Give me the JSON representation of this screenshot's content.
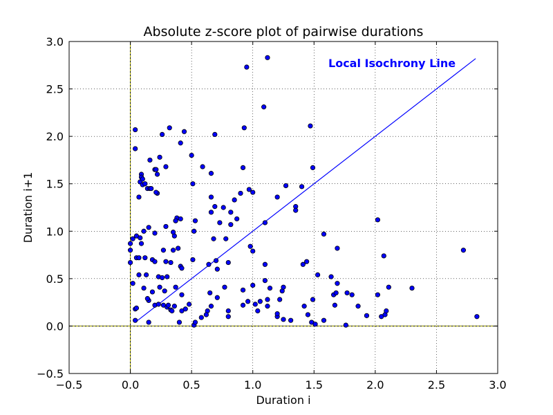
{
  "chart_data": {
    "type": "scatter",
    "title": "Absolute z-score plot of pairwise durations",
    "xlabel": "Duration i",
    "ylabel": "Duration i+1",
    "xlim": [
      -0.5,
      3.0
    ],
    "ylim": [
      -0.5,
      3.0
    ],
    "xticks": [
      -0.5,
      0.0,
      0.5,
      1.0,
      1.5,
      2.0,
      2.5,
      3.0
    ],
    "yticks": [
      -0.5,
      0.0,
      0.5,
      1.0,
      1.5,
      2.0,
      2.5,
      3.0
    ],
    "xtick_labels": [
      "−0.5",
      "0.0",
      "0.5",
      "1.0",
      "1.5",
      "2.0",
      "2.5",
      "3.0"
    ],
    "ytick_labels": [
      "−0.5",
      "0.0",
      "0.5",
      "1.0",
      "1.5",
      "2.0",
      "2.5",
      "3.0"
    ],
    "grid": true,
    "marker_color": "#0000ff",
    "line_color": "#0000ff",
    "axis_line_color": "#bfbf00",
    "annotation_text": "Local Isochrony Line",
    "isochrony_line": {
      "x": [
        0.05,
        2.82
      ],
      "y": [
        0.05,
        2.82
      ]
    },
    "reference_lines": {
      "x": 0.0,
      "y": 0.0
    },
    "points": [
      [
        0.0,
        0.87
      ],
      [
        0.0,
        0.8
      ],
      [
        0.0,
        0.67
      ],
      [
        0.02,
        0.92
      ],
      [
        0.02,
        0.45
      ],
      [
        0.05,
        0.95
      ],
      [
        0.05,
        0.72
      ],
      [
        0.04,
        0.18
      ],
      [
        0.05,
        0.19
      ],
      [
        0.04,
        0.06
      ],
      [
        0.04,
        2.07
      ],
      [
        0.04,
        1.87
      ],
      [
        0.07,
        1.36
      ],
      [
        0.08,
        1.52
      ],
      [
        0.09,
        1.6
      ],
      [
        0.09,
        1.57
      ],
      [
        0.1,
        1.55
      ],
      [
        0.1,
        1.49
      ],
      [
        0.12,
        1.5
      ],
      [
        0.14,
        1.45
      ],
      [
        0.16,
        1.45
      ],
      [
        0.17,
        1.45
      ],
      [
        0.16,
        1.75
      ],
      [
        0.2,
        1.65
      ],
      [
        0.22,
        1.6
      ],
      [
        0.24,
        1.78
      ],
      [
        0.22,
        1.4
      ],
      [
        0.21,
        1.41
      ],
      [
        0.26,
        2.02
      ],
      [
        0.32,
        2.09
      ],
      [
        0.44,
        2.05
      ],
      [
        0.41,
        1.93
      ],
      [
        0.29,
        1.68
      ],
      [
        0.21,
        1.65
      ],
      [
        0.08,
        0.93
      ],
      [
        0.09,
        0.87
      ],
      [
        0.11,
        1.0
      ],
      [
        0.15,
        1.04
      ],
      [
        0.12,
        0.72
      ],
      [
        0.18,
        0.7
      ],
      [
        0.2,
        0.68
      ],
      [
        0.07,
        0.72
      ],
      [
        0.07,
        0.54
      ],
      [
        0.11,
        0.4
      ],
      [
        0.13,
        0.54
      ],
      [
        0.18,
        0.36
      ],
      [
        0.23,
        0.52
      ],
      [
        0.24,
        0.41
      ],
      [
        0.26,
        0.51
      ],
      [
        0.28,
        0.37
      ],
      [
        0.3,
        0.52
      ],
      [
        0.15,
        0.27
      ],
      [
        0.14,
        0.29
      ],
      [
        0.2,
        0.22
      ],
      [
        0.23,
        0.23
      ],
      [
        0.27,
        0.22
      ],
      [
        0.3,
        0.2
      ],
      [
        0.31,
        0.22
      ],
      [
        0.33,
        0.17
      ],
      [
        0.34,
        0.16
      ],
      [
        0.36,
        0.21
      ],
      [
        0.15,
        0.04
      ],
      [
        0.4,
        0.04
      ],
      [
        0.42,
        0.16
      ],
      [
        0.45,
        0.18
      ],
      [
        0.48,
        0.23
      ],
      [
        0.42,
        0.33
      ],
      [
        0.37,
        0.41
      ],
      [
        0.29,
        0.68
      ],
      [
        0.33,
        0.67
      ],
      [
        0.35,
        0.8
      ],
      [
        0.39,
        0.82
      ],
      [
        0.41,
        0.63
      ],
      [
        0.42,
        0.61
      ],
      [
        0.36,
        0.95
      ],
      [
        0.35,
        0.99
      ],
      [
        0.37,
        1.11
      ],
      [
        0.38,
        1.14
      ],
      [
        0.41,
        1.13
      ],
      [
        0.29,
        1.05
      ],
      [
        0.2,
        0.98
      ],
      [
        0.27,
        0.8
      ],
      [
        0.37,
        1.11
      ],
      [
        0.51,
        0.7
      ],
      [
        0.53,
        1.11
      ],
      [
        0.52,
        1.0
      ],
      [
        0.52,
        0.01
      ],
      [
        0.53,
        0.04
      ],
      [
        0.51,
        1.5
      ],
      [
        0.5,
        1.8
      ],
      [
        0.59,
        1.68
      ],
      [
        0.66,
        1.36
      ],
      [
        0.66,
        1.2
      ],
      [
        0.66,
        1.61
      ],
      [
        0.69,
        2.02
      ],
      [
        0.68,
        0.92
      ],
      [
        0.69,
        1.26
      ],
      [
        0.73,
        1.09
      ],
      [
        0.71,
        0.6
      ],
      [
        0.65,
        0.35
      ],
      [
        0.64,
        0.65
      ],
      [
        0.7,
        0.69
      ],
      [
        0.66,
        0.21
      ],
      [
        0.63,
        0.16
      ],
      [
        0.62,
        0.12
      ],
      [
        0.58,
        0.09
      ],
      [
        0.71,
        0.3
      ],
      [
        0.77,
        0.41
      ],
      [
        0.8,
        0.16
      ],
      [
        0.8,
        0.1
      ],
      [
        0.8,
        0.67
      ],
      [
        0.78,
        0.92
      ],
      [
        0.76,
        1.25
      ],
      [
        0.82,
        1.2
      ],
      [
        0.82,
        1.07
      ],
      [
        0.85,
        1.33
      ],
      [
        0.87,
        1.13
      ],
      [
        0.9,
        1.4
      ],
      [
        0.92,
        1.67
      ],
      [
        0.93,
        2.09
      ],
      [
        0.95,
        2.73
      ],
      [
        0.97,
        1.44
      ],
      [
        1.0,
        1.41
      ],
      [
        0.98,
        0.84
      ],
      [
        1.0,
        0.79
      ],
      [
        1.0,
        0.43
      ],
      [
        0.92,
        0.38
      ],
      [
        0.92,
        0.22
      ],
      [
        0.96,
        0.26
      ],
      [
        1.02,
        0.23
      ],
      [
        1.04,
        0.16
      ],
      [
        1.06,
        0.26
      ],
      [
        1.1,
        0.48
      ],
      [
        1.1,
        0.65
      ],
      [
        1.1,
        1.09
      ],
      [
        1.09,
        2.31
      ],
      [
        1.12,
        2.83
      ],
      [
        1.12,
        0.28
      ],
      [
        1.12,
        0.21
      ],
      [
        1.14,
        0.4
      ],
      [
        1.2,
        0.1
      ],
      [
        1.2,
        0.13
      ],
      [
        1.22,
        0.28
      ],
      [
        1.24,
        0.37
      ],
      [
        1.25,
        0.41
      ],
      [
        1.25,
        0.07
      ],
      [
        1.27,
        1.48
      ],
      [
        1.2,
        1.36
      ],
      [
        1.31,
        0.06
      ],
      [
        1.35,
        1.26
      ],
      [
        1.35,
        1.22
      ],
      [
        1.4,
        1.47
      ],
      [
        1.41,
        0.65
      ],
      [
        1.42,
        0.21
      ],
      [
        1.44,
        0.68
      ],
      [
        1.45,
        0.12
      ],
      [
        1.47,
        2.11
      ],
      [
        1.48,
        0.04
      ],
      [
        1.49,
        1.67
      ],
      [
        1.49,
        0.28
      ],
      [
        1.53,
        0.54
      ],
      [
        1.51,
        0.02
      ],
      [
        1.58,
        0.97
      ],
      [
        1.58,
        0.06
      ],
      [
        1.64,
        0.52
      ],
      [
        1.66,
        0.33
      ],
      [
        1.67,
        0.22
      ],
      [
        1.68,
        0.35
      ],
      [
        1.69,
        0.45
      ],
      [
        1.69,
        0.82
      ],
      [
        1.76,
        0.01
      ],
      [
        1.77,
        0.35
      ],
      [
        1.81,
        0.33
      ],
      [
        1.86,
        0.21
      ],
      [
        1.93,
        0.11
      ],
      [
        2.02,
        0.33
      ],
      [
        2.02,
        1.12
      ],
      [
        2.05,
        0.1
      ],
      [
        2.07,
        0.74
      ],
      [
        2.08,
        0.12
      ],
      [
        2.09,
        0.16
      ],
      [
        2.11,
        0.41
      ],
      [
        2.3,
        0.4
      ],
      [
        2.72,
        0.8
      ],
      [
        2.83,
        0.1
      ]
    ]
  }
}
